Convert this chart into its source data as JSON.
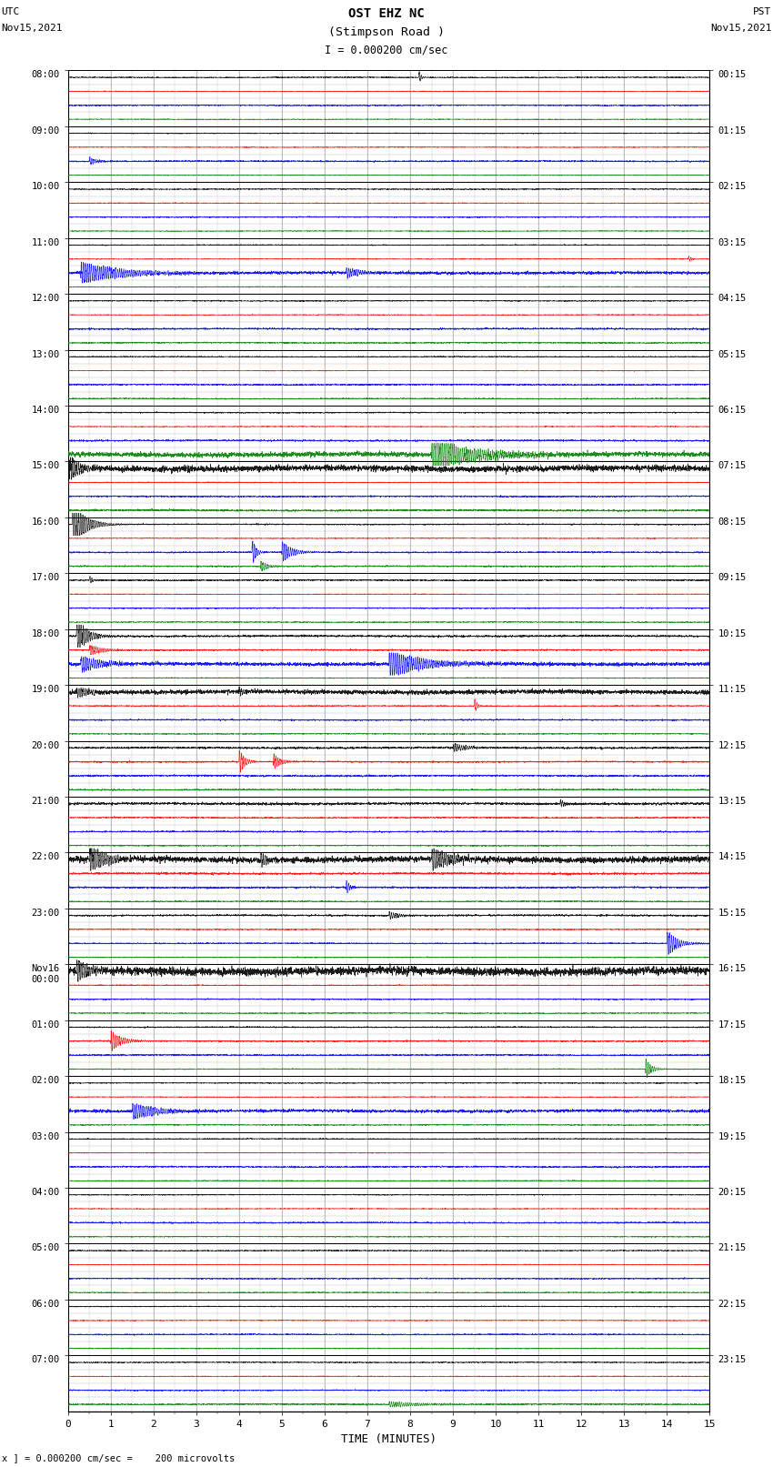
{
  "title_line1": "OST EHZ NC",
  "title_line2": "(Stimpson Road )",
  "title_line3": "I = 0.000200 cm/sec",
  "left_header_line1": "UTC",
  "left_header_line2": "Nov15,2021",
  "right_header_line1": "PST",
  "right_header_line2": "Nov15,2021",
  "bottom_xlabel": "TIME (MINUTES)",
  "bottom_note": "x ] = 0.000200 cm/sec =    200 microvolts",
  "xlim": [
    0,
    15
  ],
  "xticks": [
    0,
    1,
    2,
    3,
    4,
    5,
    6,
    7,
    8,
    9,
    10,
    11,
    12,
    13,
    14,
    15
  ],
  "bg_color": "#ffffff",
  "grid_color": "#aaaaaa",
  "trace_colors": [
    "black",
    "red",
    "blue",
    "green"
  ],
  "left_labels": [
    "08:00",
    "09:00",
    "10:00",
    "11:00",
    "12:00",
    "13:00",
    "14:00",
    "15:00",
    "16:00",
    "17:00",
    "18:00",
    "19:00",
    "20:00",
    "21:00",
    "22:00",
    "23:00",
    "Nov16\n00:00",
    "01:00",
    "02:00",
    "03:00",
    "04:00",
    "05:00",
    "06:00",
    "07:00"
  ],
  "right_labels": [
    "00:15",
    "01:15",
    "02:15",
    "03:15",
    "04:15",
    "05:15",
    "06:15",
    "07:15",
    "08:15",
    "09:15",
    "10:15",
    "11:15",
    "12:15",
    "13:15",
    "14:15",
    "15:15",
    "16:15",
    "17:15",
    "18:15",
    "19:15",
    "20:15",
    "21:15",
    "22:15",
    "23:15"
  ],
  "num_hours": 24,
  "sub_traces": 4,
  "figsize": [
    8.5,
    16.13
  ],
  "dpi": 100
}
